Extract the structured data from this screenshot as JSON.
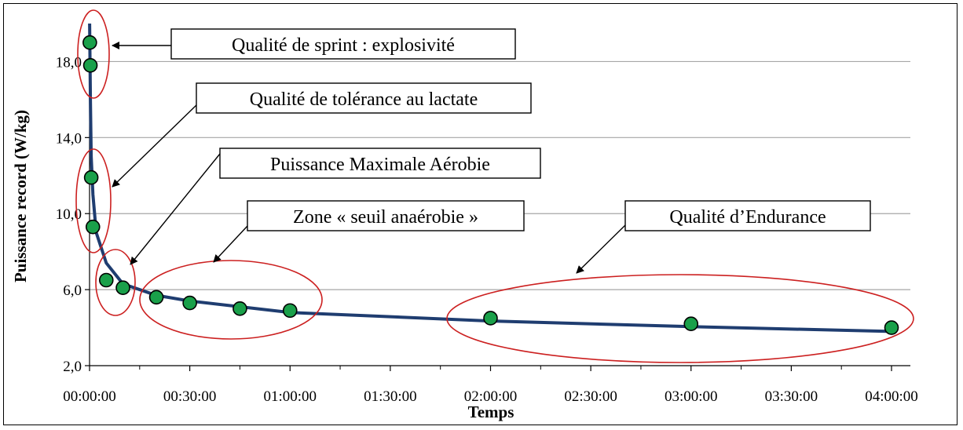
{
  "chart_data": {
    "type": "scatter",
    "xlabel": "Temps",
    "ylabel": "Puissance record (W/kg)",
    "x_ticks": [
      "00:00:00",
      "00:30:00",
      "01:00:00",
      "01:30:00",
      "02:00:00",
      "02:30:00",
      "03:00:00",
      "03:30:00",
      "04:00:00"
    ],
    "y_ticks": [
      "2,0",
      "6,0",
      "10,0",
      "14,0",
      "18,0"
    ],
    "xlim_minutes": [
      0,
      240
    ],
    "ylim": [
      2.0,
      20.0
    ],
    "grid": "horizontal",
    "points": [
      {
        "x": "00:00:05",
        "y": 19.0
      },
      {
        "x": "00:00:15",
        "y": 17.8
      },
      {
        "x": "00:00:30",
        "y": 11.9
      },
      {
        "x": "00:01:00",
        "y": 9.3
      },
      {
        "x": "00:05:00",
        "y": 6.5
      },
      {
        "x": "00:10:00",
        "y": 6.1
      },
      {
        "x": "00:20:00",
        "y": 5.6
      },
      {
        "x": "00:30:00",
        "y": 5.3
      },
      {
        "x": "00:45:00",
        "y": 5.0
      },
      {
        "x": "01:00:00",
        "y": 4.9
      },
      {
        "x": "02:00:00",
        "y": 4.5
      },
      {
        "x": "03:00:00",
        "y": 4.2
      },
      {
        "x": "04:00:00",
        "y": 4.0
      }
    ],
    "fit_curve": {
      "type": "power-law",
      "points": [
        {
          "x": "00:00:01",
          "y": 20.0
        },
        {
          "x": "00:00:15",
          "y": 16.0
        },
        {
          "x": "00:00:30",
          "y": 13.0
        },
        {
          "x": "00:01:00",
          "y": 11.0
        },
        {
          "x": "00:02:00",
          "y": 9.0
        },
        {
          "x": "00:05:00",
          "y": 7.4
        },
        {
          "x": "00:10:00",
          "y": 6.3
        },
        {
          "x": "00:20:00",
          "y": 5.7
        },
        {
          "x": "00:30:00",
          "y": 5.4
        },
        {
          "x": "01:00:00",
          "y": 4.8
        },
        {
          "x": "02:00:00",
          "y": 4.35
        },
        {
          "x": "03:00:00",
          "y": 4.05
        },
        {
          "x": "04:00:00",
          "y": 3.8
        }
      ]
    },
    "annotations": [
      "Qualité de sprint : explosivité",
      "Qualité de tolérance au lactate",
      "Puissance Maximale Aérobie",
      "Zone « seuil anaérobie »",
      "Qualité d’Endurance"
    ],
    "colors": {
      "points": "#1aa04a",
      "curve": "#1f3d70",
      "ellipses": "#cc2020",
      "grid": "#a6a6a6"
    }
  }
}
